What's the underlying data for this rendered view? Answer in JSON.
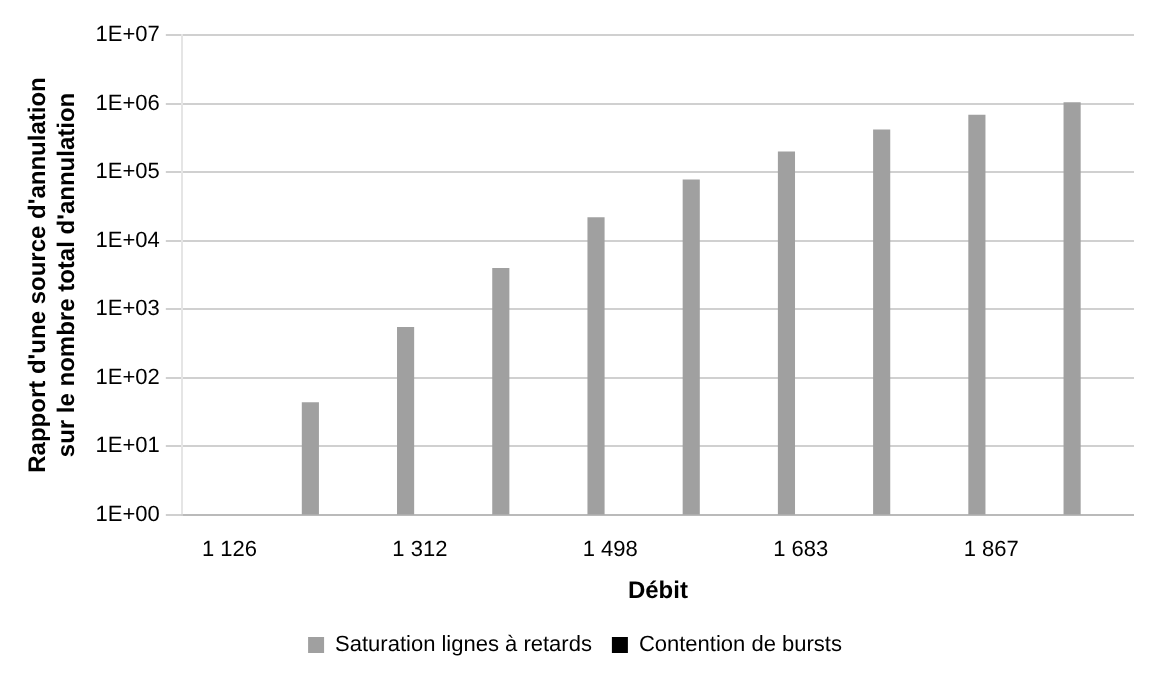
{
  "chart_data": {
    "type": "bar",
    "xlabel": "Débit",
    "ylabel": "Rapport d'une source d'annulation sur le nombre total d'annulation",
    "categories": [
      "1 126",
      null,
      "1 312",
      null,
      "1 498",
      null,
      "1 683",
      null,
      "1 867",
      null
    ],
    "series": [
      {
        "name": "Saturation lignes à retards",
        "color": "#a0a0a0",
        "values": [
          1,
          44,
          550,
          4000,
          22000,
          78000,
          200000,
          420000,
          690000,
          1050000
        ]
      },
      {
        "name": "Contention de bursts",
        "color": "#000000",
        "values": [
          1,
          1,
          1,
          1,
          1,
          1,
          1,
          1,
          1,
          1
        ]
      }
    ],
    "log": true,
    "ylim": [
      1,
      10000000
    ],
    "yticks": [
      {
        "value": 1,
        "label": "1E+00"
      },
      {
        "value": 10,
        "label": "1E+01"
      },
      {
        "value": 100,
        "label": "1E+02"
      },
      {
        "value": 1000,
        "label": "1E+03"
      },
      {
        "value": 10000,
        "label": "1E+04"
      },
      {
        "value": 100000,
        "label": "1E+05"
      },
      {
        "value": 1000000,
        "label": "1E+06"
      },
      {
        "value": 10000000,
        "label": "1E+07"
      }
    ],
    "grid": "y",
    "legend": "bottom"
  }
}
